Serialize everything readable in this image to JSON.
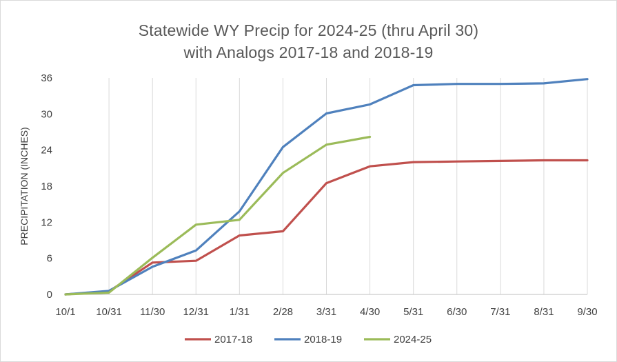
{
  "chart_data": {
    "type": "line",
    "title_line1": "Statewide WY Precip for 2024-25 (thru April 30)",
    "title_line2": "with Analogs 2017-18 and 2018-19",
    "ylabel": "PRECIPITATION (INCHES)",
    "xlabel": "",
    "categories": [
      "10/1",
      "10/31",
      "11/30",
      "12/31",
      "1/31",
      "2/28",
      "3/31",
      "4/30",
      "5/31",
      "6/30",
      "7/31",
      "8/31",
      "9/30"
    ],
    "yticks": [
      0,
      6,
      12,
      18,
      24,
      30,
      36
    ],
    "ylim": [
      0,
      36
    ],
    "grid": "vertical",
    "legend": "bottom",
    "series": [
      {
        "name": "2017-18",
        "color": "#c0504d",
        "values": [
          0,
          0.5,
          5.3,
          5.6,
          9.8,
          10.5,
          18.5,
          21.3,
          22.0,
          22.1,
          22.2,
          22.3,
          22.3
        ]
      },
      {
        "name": "2018-19",
        "color": "#4f81bd",
        "values": [
          0,
          0.6,
          4.6,
          7.3,
          13.8,
          24.5,
          30.1,
          31.6,
          34.8,
          35.0,
          35.0,
          35.1,
          35.8
        ]
      },
      {
        "name": "2024-25",
        "color": "#9bbb59",
        "values": [
          0,
          0.3,
          6.1,
          11.6,
          12.4,
          20.2,
          24.9,
          26.2,
          null,
          null,
          null,
          null,
          null
        ]
      }
    ]
  }
}
